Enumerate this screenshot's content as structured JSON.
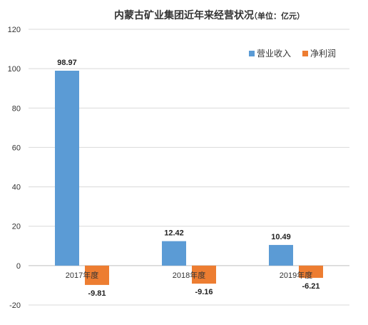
{
  "colors": {
    "revenue": "#5b9bd5",
    "profit": "#ed7d31",
    "grid": "#d9d9d9",
    "axis": "#bfbfbf"
  },
  "chart_data": {
    "type": "bar",
    "title": "内蒙古矿业集团近年来经营状况",
    "unit_label": "（单位：亿元）",
    "categories": [
      "2017年度",
      "2018年度",
      "2019年度"
    ],
    "series": [
      {
        "name": "营业收入",
        "values": [
          98.97,
          12.42,
          10.49
        ],
        "labels": [
          "98.97",
          "12.42",
          "10.49"
        ]
      },
      {
        "name": "净利润",
        "values": [
          -9.81,
          -9.16,
          -6.21
        ],
        "labels": [
          "-9.81",
          "-9.16",
          "-6.21"
        ]
      }
    ],
    "ylim": [
      -20,
      120
    ],
    "yticks": [
      -20,
      0,
      20,
      40,
      60,
      80,
      100,
      120
    ],
    "grid": true,
    "legend_position": "top-right"
  }
}
